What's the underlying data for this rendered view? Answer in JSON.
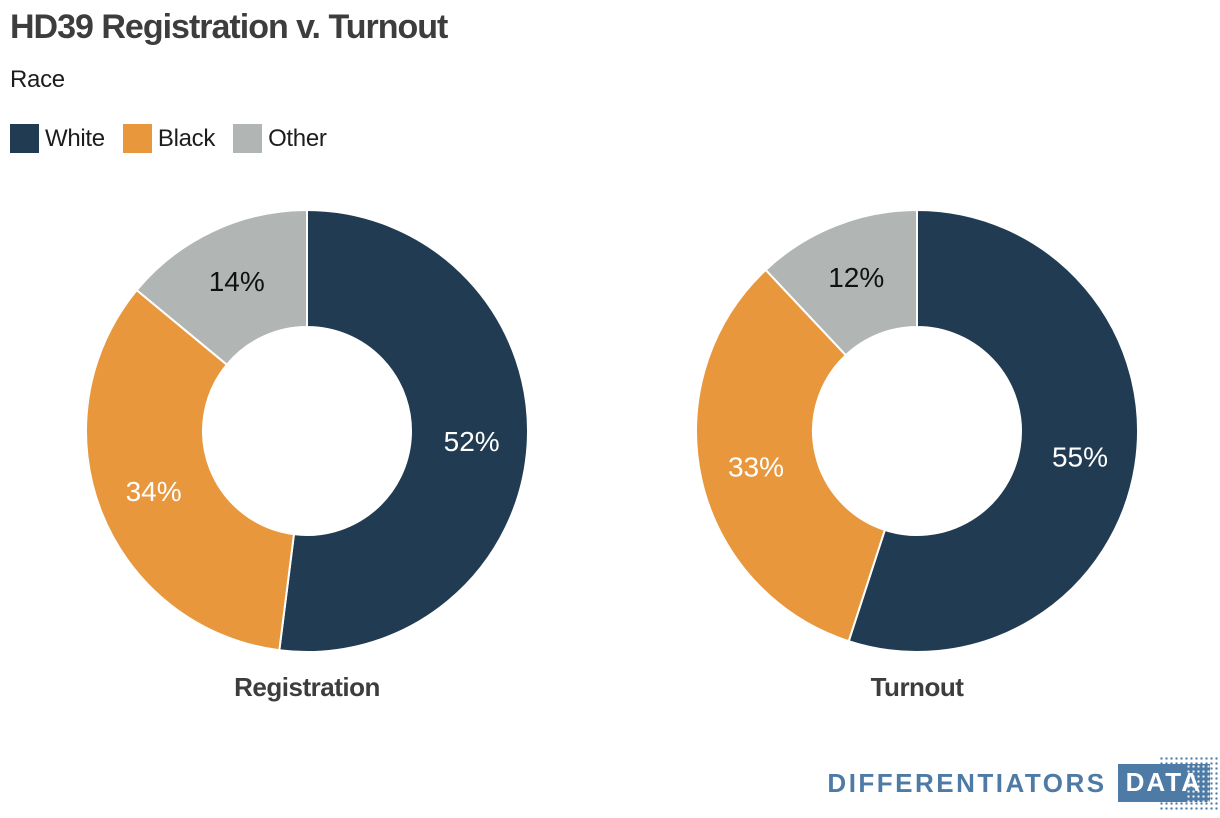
{
  "header": {
    "title": "HD39 Registration v. Turnout",
    "subtitle": "Race"
  },
  "legend": {
    "position": "top-left",
    "items": [
      {
        "label": "White",
        "color": "#213c52"
      },
      {
        "label": "Black",
        "color": "#e8973d"
      },
      {
        "label": "Other",
        "color": "#b1b6b5"
      }
    ]
  },
  "chart_data": [
    {
      "type": "pie",
      "donut": true,
      "title": "Registration",
      "categories": [
        "White",
        "Black",
        "Other"
      ],
      "values": [
        52,
        34,
        14
      ],
      "data_labels": [
        "52%",
        "34%",
        "14%"
      ],
      "colors": [
        "#213c52",
        "#e8973d",
        "#b1b6b5"
      ],
      "label_colors": [
        "#ffffff",
        "#ffffff",
        "#111111"
      ],
      "start_angle": 0,
      "direction": "clockwise",
      "inner_radius_ratio": 0.47
    },
    {
      "type": "pie",
      "donut": true,
      "title": "Turnout",
      "categories": [
        "White",
        "Black",
        "Other"
      ],
      "values": [
        55,
        33,
        12
      ],
      "data_labels": [
        "55%",
        "33%",
        "12%"
      ],
      "colors": [
        "#213c52",
        "#e8973d",
        "#b1b6b5"
      ],
      "label_colors": [
        "#ffffff",
        "#ffffff",
        "#111111"
      ],
      "start_angle": 0,
      "direction": "clockwise",
      "inner_radius_ratio": 0.47
    }
  ],
  "footer": {
    "brand": "DIFFERENTIATORS",
    "brand_badge": "DATA",
    "brand_color": "#4d7ba6"
  }
}
